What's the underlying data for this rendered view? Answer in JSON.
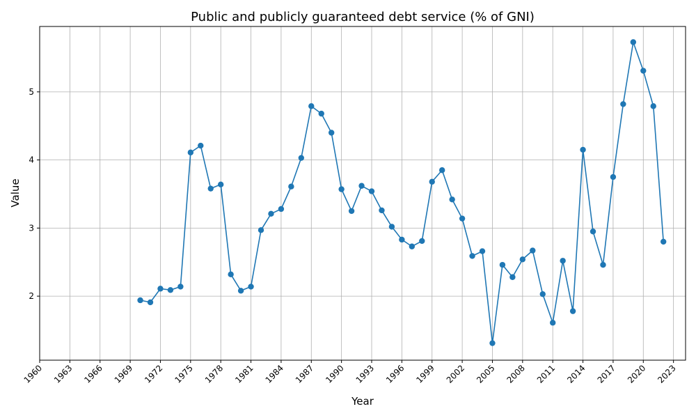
{
  "chart_data": {
    "type": "line",
    "title": "Public and publicly guaranteed debt service (% of GNI)",
    "xlabel": "Year",
    "ylabel": "Value",
    "xlim": [
      1960,
      2024.2
    ],
    "ylim": [
      1.06,
      5.96
    ],
    "x_ticks": [
      1960,
      1963,
      1966,
      1969,
      1972,
      1975,
      1978,
      1981,
      1984,
      1987,
      1990,
      1993,
      1996,
      1999,
      2002,
      2005,
      2008,
      2011,
      2014,
      2017,
      2020,
      2023
    ],
    "y_ticks": [
      2,
      3,
      4,
      5
    ],
    "grid": true,
    "color": "#1f77b4",
    "x": [
      1970,
      1971,
      1972,
      1973,
      1974,
      1975,
      1976,
      1977,
      1978,
      1979,
      1980,
      1981,
      1982,
      1983,
      1984,
      1985,
      1986,
      1987,
      1988,
      1989,
      1990,
      1991,
      1992,
      1993,
      1994,
      1995,
      1996,
      1997,
      1998,
      1999,
      2000,
      2001,
      2002,
      2003,
      2004,
      2005,
      2006,
      2007,
      2008,
      2009,
      2010,
      2011,
      2012,
      2013,
      2014,
      2015,
      2016,
      2017,
      2018,
      2019,
      2020,
      2021,
      2022
    ],
    "values": [
      1.94,
      1.91,
      2.11,
      2.09,
      2.14,
      4.11,
      4.21,
      3.58,
      3.64,
      2.32,
      2.08,
      2.14,
      2.97,
      3.21,
      3.28,
      3.61,
      4.03,
      4.79,
      4.68,
      4.4,
      3.57,
      3.25,
      3.62,
      3.54,
      3.26,
      3.02,
      2.83,
      2.73,
      2.81,
      3.68,
      3.85,
      3.42,
      3.14,
      2.59,
      2.66,
      1.31,
      2.46,
      2.28,
      2.54,
      2.67,
      2.03,
      1.61,
      2.52,
      1.78,
      4.15,
      2.95,
      2.46,
      3.75,
      4.82,
      5.73,
      5.31,
      4.79,
      2.8
    ]
  }
}
